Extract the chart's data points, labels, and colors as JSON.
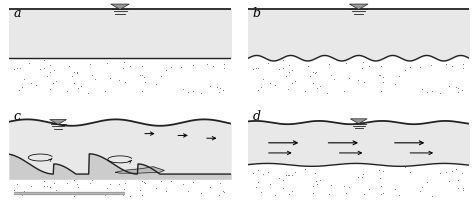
{
  "bg_color": "#ffffff",
  "water_color": "#e8e8e8",
  "dot_color": "#444444",
  "line_color": "#222222",
  "dune_color": "#cccccc",
  "panel_labels": [
    "a",
    "b",
    "c",
    "d"
  ],
  "label_fontsize": 9,
  "gauge_color": "#888888"
}
